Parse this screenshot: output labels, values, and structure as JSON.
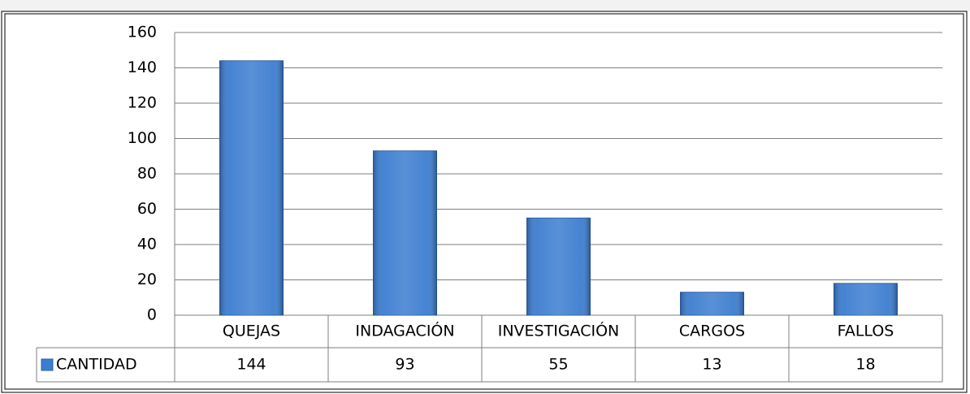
{
  "chart_data": {
    "type": "bar",
    "categories": [
      "QUEJAS",
      "INDAGACIÓN",
      "INVESTIGACIÓN",
      "CARGOS",
      "FALLOS"
    ],
    "series": [
      {
        "name": "CANTIDAD",
        "color": "#3c7dd0",
        "values": [
          144,
          93,
          55,
          13,
          18
        ]
      }
    ],
    "ylim": [
      0,
      160
    ],
    "yticks": [
      0,
      20,
      40,
      60,
      80,
      100,
      120,
      140,
      160
    ],
    "grid": true,
    "legend": "bottom-left"
  }
}
